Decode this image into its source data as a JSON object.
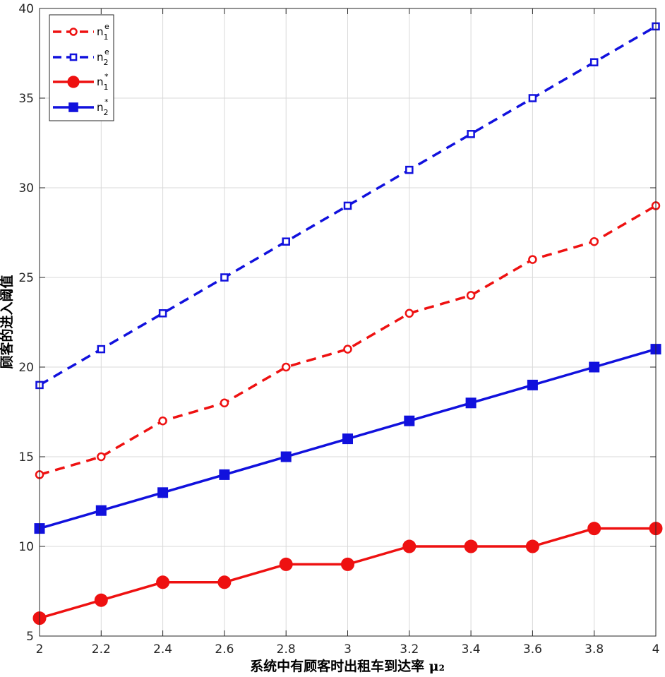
{
  "chart_data": {
    "type": "line",
    "xlabel": "系统中有顾客时出租车到达率 μ₂",
    "ylabel": "顾客的进入阈值",
    "xlim": [
      2,
      4
    ],
    "ylim": [
      5,
      40
    ],
    "xticks": [
      "2",
      "2.2",
      "2.4",
      "2.6",
      "2.8",
      "3",
      "3.2",
      "3.4",
      "3.6",
      "3.8",
      "4"
    ],
    "yticks": [
      "5",
      "10",
      "15",
      "20",
      "25",
      "30",
      "35",
      "40"
    ],
    "grid": true,
    "legend_position": "top-left",
    "x": [
      2,
      2.2,
      2.4,
      2.6,
      2.8,
      3,
      3.2,
      3.4,
      3.6,
      3.8,
      4
    ],
    "series": [
      {
        "name": "n",
        "sup": "e",
        "sub": "1",
        "color": "#ee1111",
        "style": "dashed",
        "marker": "circle-open",
        "values": [
          14,
          15,
          17,
          18,
          20,
          21,
          23,
          24,
          26,
          27,
          29
        ]
      },
      {
        "name": "n",
        "sup": "e",
        "sub": "2",
        "color": "#1111dd",
        "style": "dashed",
        "marker": "square-open",
        "values": [
          19,
          21,
          23,
          25,
          27,
          29,
          31,
          33,
          35,
          37,
          39
        ]
      },
      {
        "name": "n",
        "sup": "*",
        "sub": "1",
        "color": "#ee1111",
        "style": "solid",
        "marker": "circle-filled",
        "values": [
          6,
          7,
          8,
          8,
          9,
          9,
          10,
          10,
          10,
          11,
          11
        ]
      },
      {
        "name": "n",
        "sup": "*",
        "sub": "2",
        "color": "#1111dd",
        "style": "solid",
        "marker": "square-filled",
        "values": [
          11,
          12,
          13,
          14,
          15,
          16,
          17,
          18,
          19,
          20,
          21
        ]
      }
    ]
  }
}
